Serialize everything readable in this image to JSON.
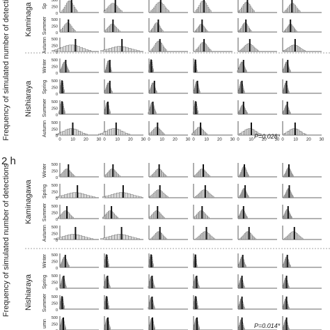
{
  "figure": {
    "panel_top": {
      "label": "",
      "y_axis_title": "Frequency of simulated number of detections",
      "river_labels": [
        "Kaminaga",
        "Nishiaraya"
      ],
      "season_rows": [
        {
          "river": 0,
          "season": "Sp",
          "clipped": true
        },
        {
          "river": 0,
          "season": "Summer"
        },
        {
          "river": 0,
          "season": "Autumn"
        },
        {
          "river": 1,
          "season": "Winter"
        },
        {
          "river": 1,
          "season": "Spring"
        },
        {
          "river": 1,
          "season": "Summer"
        },
        {
          "river": 1,
          "season": "Autumn"
        }
      ],
      "y_ticks": [
        "500",
        "250",
        "0"
      ],
      "x_ticks": [
        "0",
        "10",
        "20",
        "30"
      ],
      "annotation": "P=0.028*"
    },
    "panel_bottom": {
      "label": "2 h",
      "y_axis_title": "Frequency of simulated number of detections",
      "river_labels": [
        "Kaminagawa",
        "Nishiaraya"
      ],
      "season_rows": [
        {
          "river": 0,
          "season": "Winter"
        },
        {
          "river": 0,
          "season": "Spring"
        },
        {
          "river": 0,
          "season": "Summer"
        },
        {
          "river": 0,
          "season": "Autumn"
        },
        {
          "river": 1,
          "season": "Winter"
        },
        {
          "river": 1,
          "season": "Spring"
        },
        {
          "river": 1,
          "season": "Summer"
        },
        {
          "river": 1,
          "season": "umn",
          "clipped": true
        }
      ],
      "y_ticks": [
        "500",
        "250",
        "0"
      ],
      "annotation": "P=0.014*"
    }
  },
  "colors": {
    "axis": "#333333",
    "hist_fill": "#d9d9d9",
    "hist_stroke": "#555555",
    "observed_bar": "#111111",
    "divider": "#888888"
  }
}
